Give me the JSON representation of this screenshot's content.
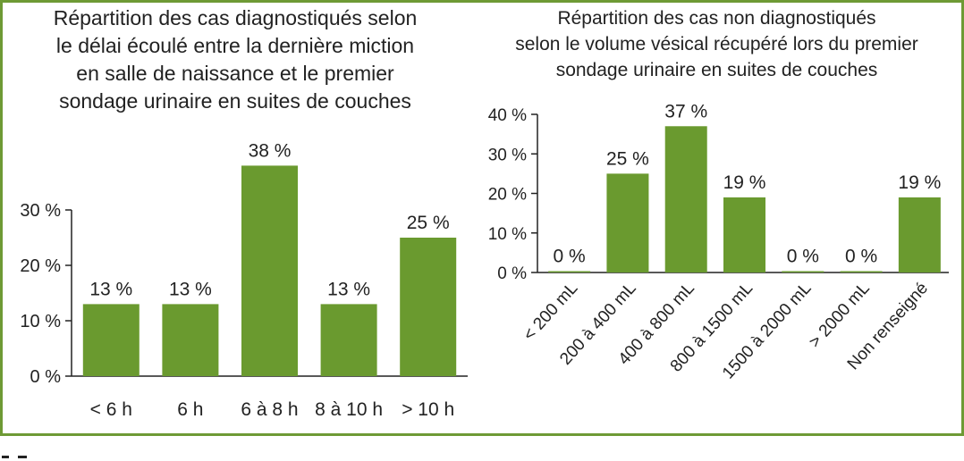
{
  "colors": {
    "bar": "#6a9a2f",
    "frame": "#6e9a35",
    "axis": "#222222"
  },
  "chart_data": [
    {
      "type": "bar",
      "title": [
        "Répartition des cas diagnostiqués selon",
        "le délai écoulé entre la dernière miction",
        "en salle de naissance et le premier",
        "sondage urinaire en suites de couches"
      ],
      "categories": [
        "< 6 h",
        "6 h",
        "6 à 8 h",
        "8 à 10 h",
        "> 10 h"
      ],
      "values": [
        13,
        13,
        38,
        13,
        25
      ],
      "data_labels": [
        "13 %",
        "13 %",
        "38 %",
        "13 %",
        "25 %"
      ],
      "yticks": [
        0,
        10,
        20,
        30
      ],
      "ytick_labels": [
        "0 %",
        "10 %",
        "20 %",
        "30 %"
      ],
      "ylim": [
        0,
        30
      ],
      "grid": false
    },
    {
      "type": "bar",
      "title": [
        "Répartition des cas non diagnostiqués",
        "selon le volume vésical récupéré lors du premier",
        "sondage urinaire en suites de couches"
      ],
      "categories": [
        "< 200 mL",
        "200 à 400 mL",
        "400 à 800 mL",
        "800 à 1500 mL",
        "1500 à 2000 mL",
        "> 2000 mL",
        "Non renseigné"
      ],
      "values": [
        0,
        25,
        37,
        19,
        0,
        0,
        19
      ],
      "data_labels": [
        "0 %",
        "25 %",
        "37 %",
        "19 %",
        "0 %",
        "0 %",
        "19 %"
      ],
      "yticks": [
        0,
        10,
        20,
        30,
        40
      ],
      "ytick_labels": [
        "0 %",
        "10 %",
        "20 %",
        "30 %",
        "40 %"
      ],
      "ylim": [
        0,
        40
      ],
      "grid": false
    }
  ]
}
